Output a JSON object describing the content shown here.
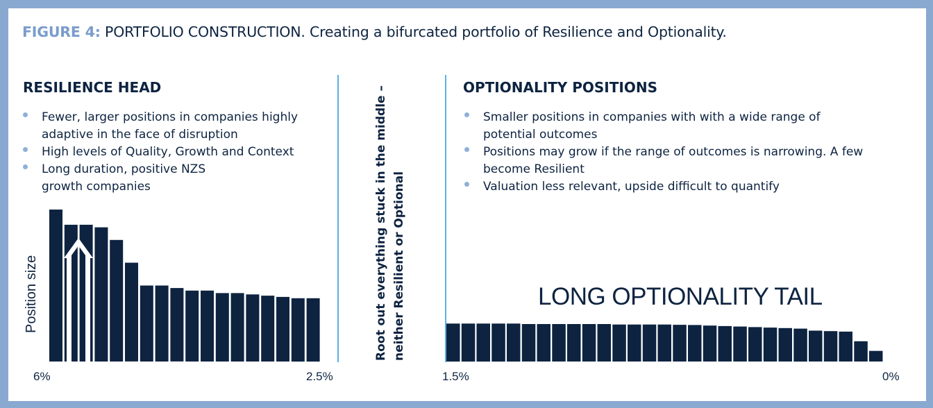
{
  "figure": {
    "label": "FIGURE 4:",
    "title": "PORTFOLIO CONSTRUCTION. Creating a bifurcated portfolio of Resilience and Optionality."
  },
  "resilience": {
    "heading": "RESILIENCE HEAD",
    "bullets": [
      "Fewer, larger positions in companies highly adaptive in the face of disruption",
      "High levels of Quality, Growth and Context",
      "Long duration, positive NZS growth companies"
    ]
  },
  "middle_note": "Root out everything stuck in the middle – neither Resilient or Optional",
  "optionality": {
    "heading": "OPTIONALITY POSITIONS",
    "bullets": [
      "Smaller positions in companies with with a wide range of potential outcomes",
      "Positions may grow if the range of outcomes is narrowing. A few become Resilient",
      "Valuation less relevant, upside difficult to quantify"
    ],
    "tail_label": "LONG OPTIONALITY TAIL"
  },
  "colors": {
    "bar": "#0d2340",
    "divider": "#5ab0e6",
    "bullet": "#8fb0d8",
    "title_accent": "#7a9ccd",
    "frame": "#89a9d0"
  },
  "chart_data": [
    {
      "type": "bar",
      "ylabel": "Position size",
      "x_tick_labels": [
        "6%",
        "2.5%"
      ],
      "values": [
        6.0,
        5.4,
        5.4,
        5.3,
        4.8,
        3.9,
        3.0,
        3.0,
        2.9,
        2.8,
        2.8,
        2.7,
        2.7,
        2.65,
        2.6,
        2.55,
        2.5,
        2.5
      ],
      "annotation": "up-arrow"
    },
    {
      "type": "bar",
      "x_tick_labels": [
        "1.5%",
        "0%"
      ],
      "values": [
        1.5,
        1.5,
        1.5,
        1.5,
        1.5,
        1.48,
        1.48,
        1.48,
        1.48,
        1.48,
        1.48,
        1.46,
        1.46,
        1.46,
        1.46,
        1.45,
        1.44,
        1.42,
        1.4,
        1.38,
        1.36,
        1.34,
        1.32,
        1.3,
        1.22,
        1.2,
        1.18,
        0.8,
        0.42
      ]
    }
  ]
}
